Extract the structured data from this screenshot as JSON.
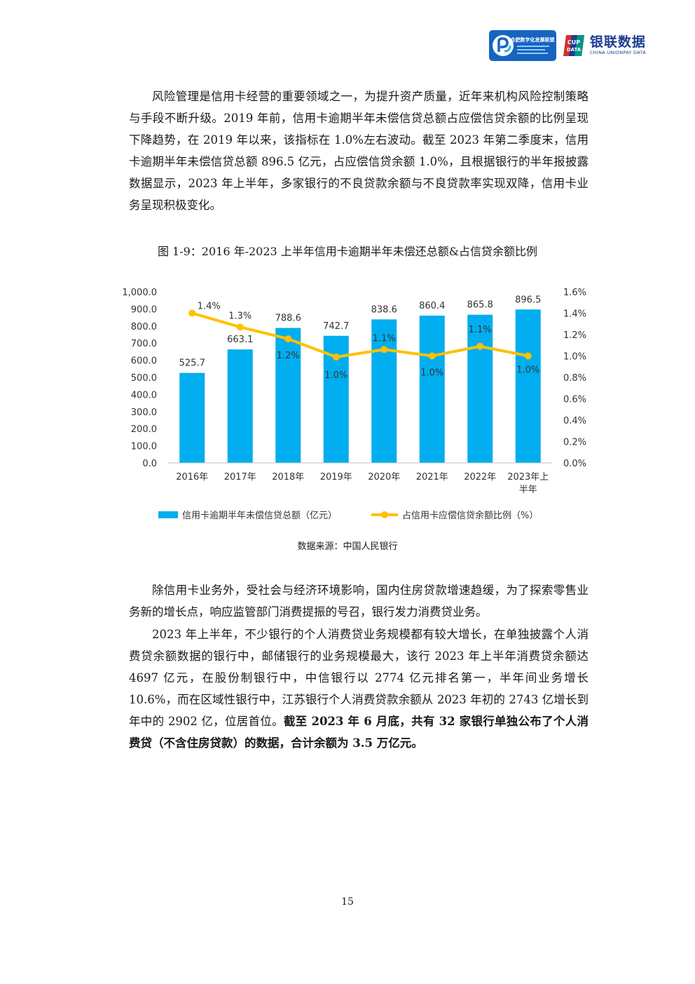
{
  "header": {
    "logo1_label": "合肥数字化发展联盟",
    "logo2_cn": "银联数据",
    "logo2_en": "CHINA UNIONPAY DATA",
    "logo2_badge": "CUP DATA"
  },
  "paragraphs": {
    "p1": "风险管理是信用卡经营的重要领域之一，为提升资产质量，近年来机构风险控制策略与手段不断升级。2019 年前，信用卡逾期半年未偿信贷总额占应偿信贷余额的比例呈现下降趋势，在 2019 年以来，该指标在 1.0%左右波动。截至 2023 年第二季度末，信用卡逾期半年未偿信贷总额 896.5 亿元，占应偿信贷余额 1.0%，且根据银行的半年报披露数据显示，2023 年上半年，多家银行的不良贷款余额与不良贷款率实现双降，信用卡业务呈现积极变化。",
    "p2": "除信用卡业务外，受社会与经济环境影响，国内住房贷款增速趋缓，为了探索零售业务新的增长点，响应监管部门消费提振的号召，银行发力消费贷业务。",
    "p3_normal": "2023 年上半年，不少银行的个人消费贷业务规模都有较大增长，在单独披露个人消费贷余额数据的银行中，邮储银行的业务规模最大，该行 2023 年上半年消费贷余额达 4697 亿元，在股份制银行中，中信银行以 2774 亿元排名第一，半年间业务增长 10.6%，而在区域性银行中，江苏银行个人消费贷款余额从 2023 年初的 2743 亿增长到年中的 2902 亿，位居首位。",
    "p3_bold": "截至 2023 年 6 月底，共有 32 家银行单独公布了个人消费贷（不含住房贷款）的数据，合计余额为 3.5 万亿元。"
  },
  "figure": {
    "title": "图 1-9：2016 年-2023 上半年信用卡逾期半年未偿还总额&占信贷余额比例",
    "source": "数据来源：中国人民银行"
  },
  "chart_data": {
    "type": "bar",
    "title": "图 1-9：2016 年-2023 上半年信用卡逾期半年未偿还总额&占信贷余额比例",
    "categories": [
      "2016年",
      "2017年",
      "2018年",
      "2019年",
      "2020年",
      "2021年",
      "2022年",
      "2023年上半年"
    ],
    "series": [
      {
        "name": "信用卡逾期半年未偿信贷总额（亿元）",
        "type": "bar",
        "axis": "left",
        "color": "#00aeef",
        "values": [
          525.7,
          663.1,
          788.6,
          742.7,
          838.6,
          860.4,
          865.8,
          896.5
        ],
        "labels": [
          "525.7",
          "663.1",
          "788.6",
          "742.7",
          "838.6",
          "860.4",
          "865.8",
          "896.5"
        ]
      },
      {
        "name": "占信用卡应偿信贷余额比例（%）",
        "type": "line",
        "axis": "right",
        "color": "#ffc000",
        "values": [
          1.4,
          1.27,
          1.16,
          0.99,
          1.06,
          1.0,
          1.09,
          1.0
        ],
        "labels": [
          "1.4%",
          "1.3%",
          "1.2%",
          "1.0%",
          "1.1%",
          "1.0%",
          "1.1%",
          "1.0%"
        ]
      }
    ],
    "y_left": {
      "min": 0,
      "max": 1000,
      "ticks": [
        "0.0",
        "100.0",
        "200.0",
        "300.0",
        "400.0",
        "500.0",
        "600.0",
        "700.0",
        "800.0",
        "900.0",
        "1,000.0"
      ]
    },
    "y_right": {
      "min": 0,
      "max": 1.6,
      "ticks": [
        "0.0%",
        "0.2%",
        "0.4%",
        "0.6%",
        "0.8%",
        "1.0%",
        "1.2%",
        "1.4%",
        "1.6%"
      ]
    },
    "legend_position": "bottom",
    "grid": false
  },
  "page_number": "15"
}
